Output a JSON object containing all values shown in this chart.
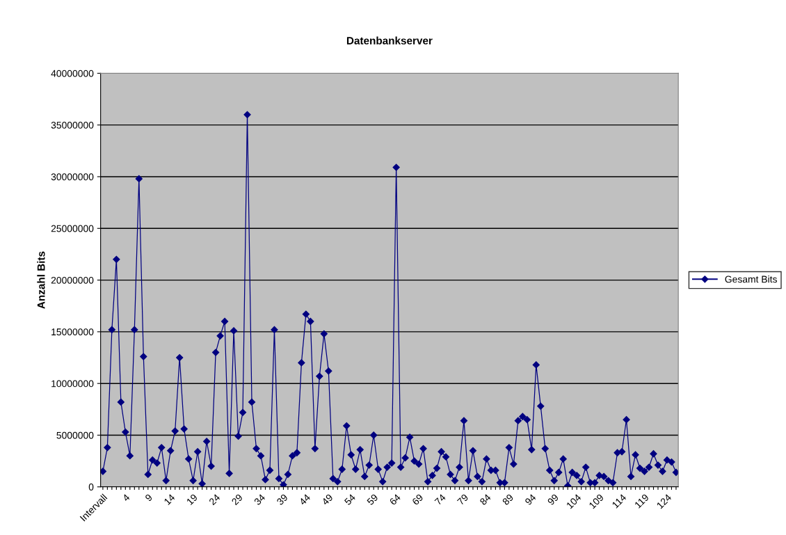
{
  "chart_data": {
    "type": "line",
    "title": "Datenbankserver",
    "ylabel": "Anzahl Bits",
    "categories": [
      "Intervall",
      null,
      null,
      null,
      null,
      "4",
      null,
      null,
      null,
      null,
      "9",
      null,
      null,
      null,
      null,
      "14",
      null,
      null,
      null,
      null,
      "19",
      null,
      null,
      null,
      null,
      "24",
      null,
      null,
      null,
      null,
      "29",
      null,
      null,
      null,
      null,
      "34",
      null,
      null,
      null,
      null,
      "39",
      null,
      null,
      null,
      null,
      "44",
      null,
      null,
      null,
      null,
      "49",
      null,
      null,
      null,
      null,
      "54",
      null,
      null,
      null,
      null,
      "59",
      null,
      null,
      null,
      null,
      "64",
      null,
      null,
      null,
      null,
      "69",
      null,
      null,
      null,
      null,
      "74",
      null,
      null,
      null,
      null,
      "79",
      null,
      null,
      null,
      null,
      "84",
      null,
      null,
      null,
      null,
      "89",
      null,
      null,
      null,
      null,
      "94",
      null,
      null,
      null,
      null,
      "99",
      null,
      null,
      null,
      null,
      "104",
      null,
      null,
      null,
      null,
      "109",
      null,
      null,
      null,
      null,
      "114",
      null,
      null,
      null,
      null,
      "119",
      null,
      null,
      null,
      null,
      "124",
      null,
      null
    ],
    "series": [
      {
        "name": "Gesamt Bits",
        "color": "#000080",
        "values": [
          1500000,
          3800000,
          15200000,
          22000000,
          8200000,
          5300000,
          3000000,
          15200000,
          29800000,
          12600000,
          1200000,
          2600000,
          2300000,
          3800000,
          600000,
          3500000,
          5400000,
          12500000,
          5600000,
          2700000,
          600000,
          3400000,
          300000,
          4400000,
          2000000,
          13000000,
          14600000,
          16000000,
          1300000,
          15100000,
          4900000,
          7200000,
          36000000,
          8200000,
          3700000,
          3000000,
          700000,
          1600000,
          15200000,
          800000,
          200000,
          1200000,
          3000000,
          3300000,
          12000000,
          16700000,
          16000000,
          3700000,
          10700000,
          14800000,
          11200000,
          800000,
          500000,
          1700000,
          5900000,
          3100000,
          1700000,
          3600000,
          1000000,
          2100000,
          5000000,
          1700000,
          500000,
          1900000,
          2300000,
          30900000,
          1900000,
          2800000,
          4800000,
          2500000,
          2200000,
          3700000,
          500000,
          1100000,
          1800000,
          3400000,
          2900000,
          1200000,
          600000,
          1900000,
          6400000,
          600000,
          3500000,
          1000000,
          500000,
          2700000,
          1600000,
          1600000,
          400000,
          400000,
          3800000,
          2200000,
          6400000,
          6800000,
          6500000,
          3600000,
          11800000,
          7800000,
          3700000,
          1600000,
          600000,
          1400000,
          2700000,
          100000,
          1400000,
          1100000,
          500000,
          1900000,
          400000,
          400000,
          1100000,
          1000000,
          600000,
          400000,
          3300000,
          3400000,
          6500000,
          1000000,
          3100000,
          1800000,
          1500000,
          1900000,
          3200000,
          2100000,
          1500000,
          2600000,
          2400000,
          1400000
        ]
      }
    ],
    "ylim": [
      0,
      40000000
    ],
    "yticks": [
      0,
      5000000,
      10000000,
      15000000,
      20000000,
      25000000,
      30000000,
      35000000,
      40000000
    ],
    "grid": "y",
    "legend": "right",
    "marker": "diamond",
    "line_style": "solid"
  }
}
